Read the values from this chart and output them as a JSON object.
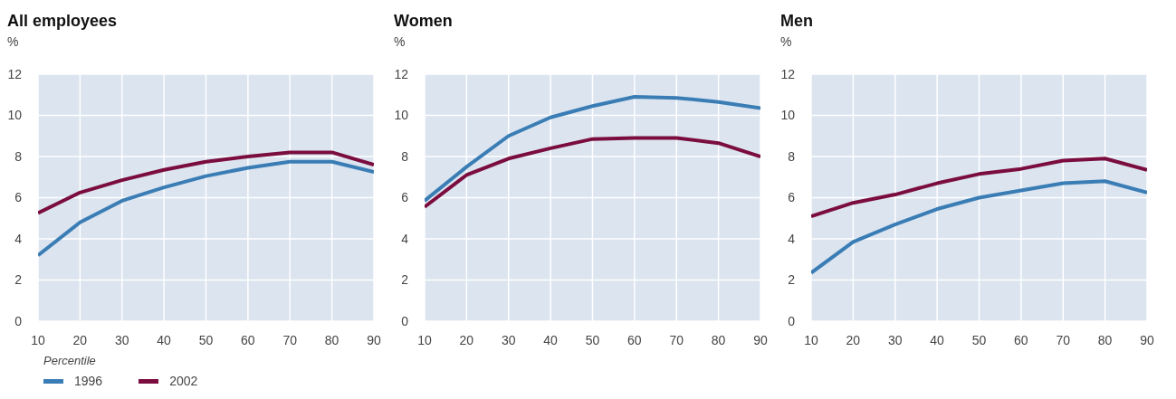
{
  "chart_data": [
    {
      "type": "line",
      "title": "All employees",
      "ylabel": "%",
      "xlabel": "Percentile",
      "x": [
        10,
        20,
        30,
        40,
        50,
        60,
        70,
        80,
        90
      ],
      "xlim": [
        10,
        90
      ],
      "xticks": [
        10,
        20,
        30,
        40,
        50,
        60,
        70,
        80,
        90
      ],
      "ylim": [
        0,
        12
      ],
      "yticks": [
        0,
        2,
        4,
        6,
        8,
        10,
        12
      ],
      "grid": true,
      "legend": "bottom left",
      "series": [
        {
          "name": "1996",
          "color": "#3a7db5",
          "values": [
            3.2,
            4.8,
            5.85,
            6.5,
            7.05,
            7.45,
            7.75,
            7.75,
            7.25
          ]
        },
        {
          "name": "2002",
          "color": "#7b0d3e",
          "values": [
            5.25,
            6.25,
            6.85,
            7.35,
            7.75,
            8.0,
            8.2,
            8.2,
            7.6
          ]
        }
      ]
    },
    {
      "type": "line",
      "title": "Women",
      "ylabel": "%",
      "x": [
        10,
        20,
        30,
        40,
        50,
        60,
        70,
        80,
        90
      ],
      "xlim": [
        10,
        90
      ],
      "xticks": [
        10,
        20,
        30,
        40,
        50,
        60,
        70,
        80,
        90
      ],
      "ylim": [
        0,
        12
      ],
      "yticks": [
        0,
        2,
        4,
        6,
        8,
        10,
        12
      ],
      "grid": true,
      "series": [
        {
          "color": "#3a7db5",
          "values": [
            5.85,
            7.5,
            9.0,
            9.9,
            10.45,
            10.9,
            10.85,
            10.65,
            10.35
          ]
        },
        {
          "color": "#7b0d3e",
          "values": [
            5.55,
            7.1,
            7.9,
            8.4,
            8.85,
            8.9,
            8.9,
            8.65,
            8.0
          ]
        }
      ]
    },
    {
      "type": "line",
      "title": "Men",
      "ylabel": "%",
      "x": [
        10,
        20,
        30,
        40,
        50,
        60,
        70,
        80,
        90
      ],
      "xlim": [
        10,
        90
      ],
      "xticks": [
        10,
        20,
        30,
        40,
        50,
        60,
        70,
        80,
        90
      ],
      "ylim": [
        0,
        12
      ],
      "yticks": [
        0,
        2,
        4,
        6,
        8,
        10,
        12
      ],
      "grid": true,
      "series": [
        {
          "color": "#3a7db5",
          "values": [
            2.35,
            3.85,
            4.7,
            5.45,
            6.0,
            6.35,
            6.7,
            6.8,
            6.25
          ]
        },
        {
          "color": "#7b0d3e",
          "values": [
            5.1,
            5.75,
            6.15,
            6.7,
            7.15,
            7.4,
            7.8,
            7.9,
            7.35
          ]
        }
      ]
    }
  ]
}
